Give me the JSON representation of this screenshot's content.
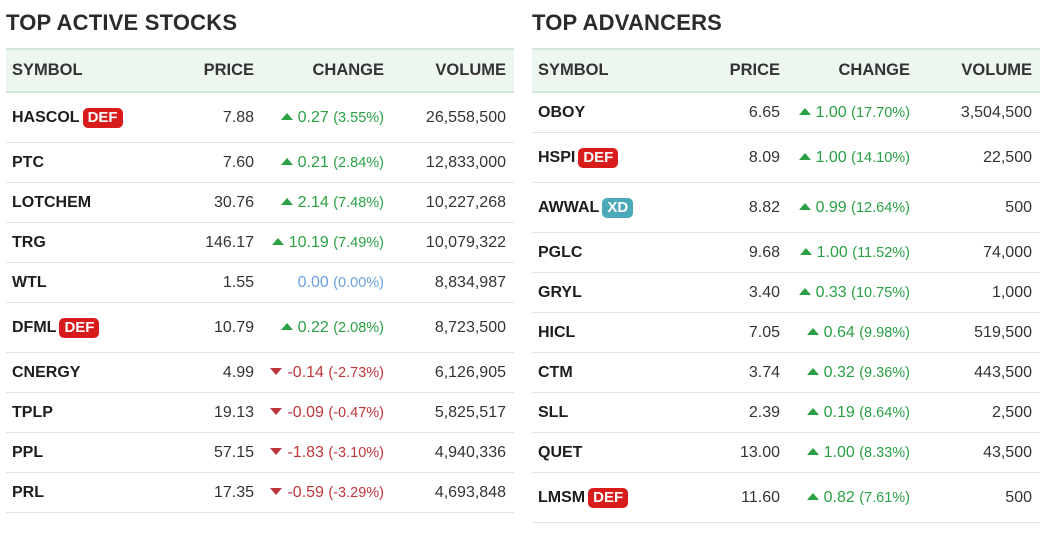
{
  "active": {
    "title": "TOP ACTIVE STOCKS",
    "headers": {
      "symbol": "SYMBOL",
      "price": "PRICE",
      "change": "CHANGE",
      "volume": "VOLUME"
    },
    "rows": [
      {
        "symbol": "HASCOL",
        "badge": "DEF",
        "price": "7.88",
        "change": "0.27",
        "pct": "(3.55%)",
        "dir": "up",
        "volume": "26,558,500"
      },
      {
        "symbol": "PTC",
        "badge": "",
        "price": "7.60",
        "change": "0.21",
        "pct": "(2.84%)",
        "dir": "up",
        "volume": "12,833,000"
      },
      {
        "symbol": "LOTCHEM",
        "badge": "",
        "price": "30.76",
        "change": "2.14",
        "pct": "(7.48%)",
        "dir": "up",
        "volume": "10,227,268"
      },
      {
        "symbol": "TRG",
        "badge": "",
        "price": "146.17",
        "change": "10.19",
        "pct": "(7.49%)",
        "dir": "up",
        "volume": "10,079,322"
      },
      {
        "symbol": "WTL",
        "badge": "",
        "price": "1.55",
        "change": "0.00",
        "pct": "(0.00%)",
        "dir": "flat",
        "volume": "8,834,987"
      },
      {
        "symbol": "DFML",
        "badge": "DEF",
        "price": "10.79",
        "change": "0.22",
        "pct": "(2.08%)",
        "dir": "up",
        "volume": "8,723,500"
      },
      {
        "symbol": "CNERGY",
        "badge": "",
        "price": "4.99",
        "change": "-0.14",
        "pct": "(-2.73%)",
        "dir": "down",
        "volume": "6,126,905"
      },
      {
        "symbol": "TPLP",
        "badge": "",
        "price": "19.13",
        "change": "-0.09",
        "pct": "(-0.47%)",
        "dir": "down",
        "volume": "5,825,517"
      },
      {
        "symbol": "PPL",
        "badge": "",
        "price": "57.15",
        "change": "-1.83",
        "pct": "(-3.10%)",
        "dir": "down",
        "volume": "4,940,336"
      },
      {
        "symbol": "PRL",
        "badge": "",
        "price": "17.35",
        "change": "-0.59",
        "pct": "(-3.29%)",
        "dir": "down",
        "volume": "4,693,848"
      }
    ]
  },
  "advancers": {
    "title": "TOP ADVANCERS",
    "headers": {
      "symbol": "SYMBOL",
      "price": "PRICE",
      "change": "CHANGE",
      "volume": "VOLUME"
    },
    "rows": [
      {
        "symbol": "OBOY",
        "badge": "",
        "price": "6.65",
        "change": "1.00",
        "pct": "(17.70%)",
        "dir": "up",
        "volume": "3,504,500"
      },
      {
        "symbol": "HSPI",
        "badge": "DEF",
        "price": "8.09",
        "change": "1.00",
        "pct": "(14.10%)",
        "dir": "up",
        "volume": "22,500"
      },
      {
        "symbol": "AWWAL",
        "badge": "XD",
        "price": "8.82",
        "change": "0.99",
        "pct": "(12.64%)",
        "dir": "up",
        "volume": "500"
      },
      {
        "symbol": "PGLC",
        "badge": "",
        "price": "9.68",
        "change": "1.00",
        "pct": "(11.52%)",
        "dir": "up",
        "volume": "74,000"
      },
      {
        "symbol": "GRYL",
        "badge": "",
        "price": "3.40",
        "change": "0.33",
        "pct": "(10.75%)",
        "dir": "up",
        "volume": "1,000"
      },
      {
        "symbol": "HICL",
        "badge": "",
        "price": "7.05",
        "change": "0.64",
        "pct": "(9.98%)",
        "dir": "up",
        "volume": "519,500"
      },
      {
        "symbol": "CTM",
        "badge": "",
        "price": "3.74",
        "change": "0.32",
        "pct": "(9.36%)",
        "dir": "up",
        "volume": "443,500"
      },
      {
        "symbol": "SLL",
        "badge": "",
        "price": "2.39",
        "change": "0.19",
        "pct": "(8.64%)",
        "dir": "up",
        "volume": "2,500"
      },
      {
        "symbol": "QUET",
        "badge": "",
        "price": "13.00",
        "change": "1.00",
        "pct": "(8.33%)",
        "dir": "up",
        "volume": "43,500"
      },
      {
        "symbol": "LMSM",
        "badge": "DEF",
        "price": "11.60",
        "change": "0.82",
        "pct": "(7.61%)",
        "dir": "up",
        "volume": "500"
      }
    ]
  },
  "colors": {
    "up": "#2aa144",
    "down": "#c0353a",
    "flat": "#6aa0e0",
    "badge_def": "#d81c1c",
    "badge_xd": "#4aa9b8",
    "header_bg": "#eef6f0"
  },
  "icons": {
    "up": "up-triangle-icon",
    "down": "down-triangle-icon"
  }
}
